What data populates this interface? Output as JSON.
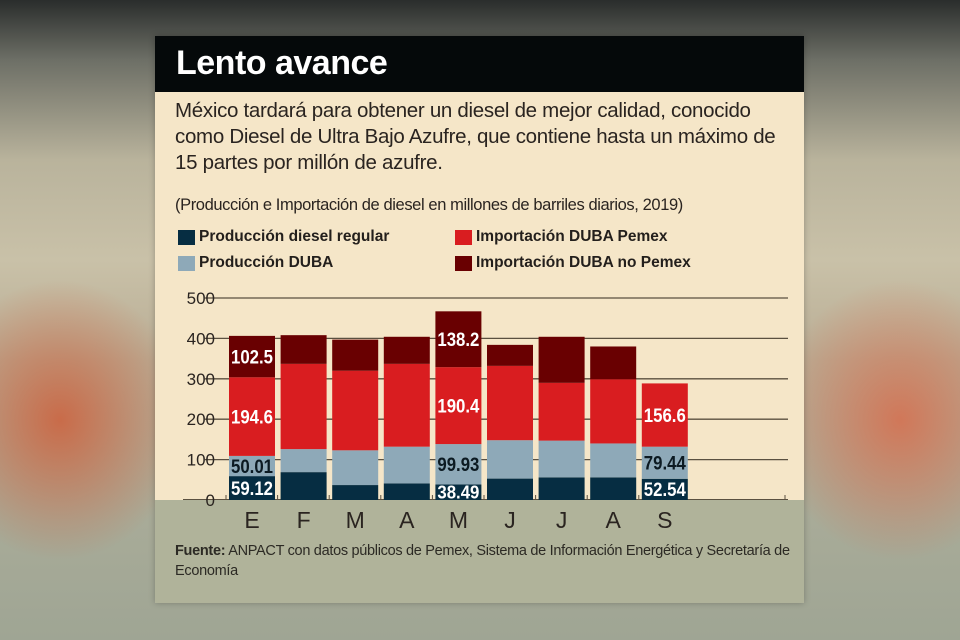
{
  "header": {
    "title": "Lento avance"
  },
  "intro_text": "México tardará para obtener un diesel de mejor calidad, conocido como Diesel de Ultra Bajo Azufre, que contiene hasta un máximo de 15 partes por millón de azufre.",
  "source": {
    "label": "Fuente:",
    "text": " ANPACT con datos públicos de Pemex, Sistema de Información Energética y Secretaría de Economía"
  },
  "colors": {
    "background_card": "#f5e6c8",
    "header_bg": "#05090a",
    "footer_bg": "#b0b39a",
    "produccion_regular": "#062d42",
    "produccion_duba": "#8ea9b8",
    "importacion_pemex": "#d91d20",
    "importacion_no_pemex": "#690001"
  },
  "chart_data": {
    "type": "bar",
    "stacked": true,
    "title": "Lento avance",
    "subtitle": "(Producción e Importación de diesel en millones de barriles diarios, 2019)",
    "xlabel": "",
    "ylabel": "",
    "ylim": [
      0,
      500
    ],
    "yticks": [
      "0",
      "100",
      "200",
      "300",
      "400",
      "500"
    ],
    "grid": true,
    "legend_position": "top",
    "categories": [
      "E",
      "F",
      "M",
      "A",
      "M",
      "J",
      "J",
      "A",
      "S"
    ],
    "series": [
      {
        "name": "Producción diesel regular",
        "color_key": "produccion_regular",
        "values": [
          59.12,
          69,
          37,
          41,
          38.49,
          53,
          56,
          56,
          52.54
        ],
        "labels": [
          "59.12",
          null,
          null,
          null,
          "38.49",
          null,
          null,
          null,
          "52.54"
        ],
        "label_color": "#ffffff"
      },
      {
        "name": "Producción DUBA",
        "color_key": "produccion_duba",
        "values": [
          50.01,
          57,
          86,
          91,
          99.93,
          95,
          91,
          84,
          79.44
        ],
        "labels": [
          "50.01",
          null,
          null,
          null,
          "99.93",
          null,
          null,
          null,
          "79.44"
        ],
        "label_color": "#0c1a22"
      },
      {
        "name": "Importación DUBA Pemex",
        "color_key": "importacion_pemex",
        "values": [
          194.6,
          211,
          197,
          205,
          190.4,
          184,
          143,
          159,
          156.6
        ],
        "labels": [
          "194.6",
          null,
          null,
          null,
          "190.4",
          null,
          null,
          null,
          "156.6"
        ],
        "label_color": "#ffffff"
      },
      {
        "name": "Importación DUBA no Pemex",
        "color_key": "importacion_no_pemex",
        "values": [
          102.5,
          71,
          77,
          67,
          138.2,
          52,
          114,
          81,
          0
        ],
        "labels": [
          "102.5",
          null,
          null,
          null,
          "138.2",
          null,
          null,
          null,
          null
        ],
        "label_color": "#ffffff"
      }
    ]
  }
}
